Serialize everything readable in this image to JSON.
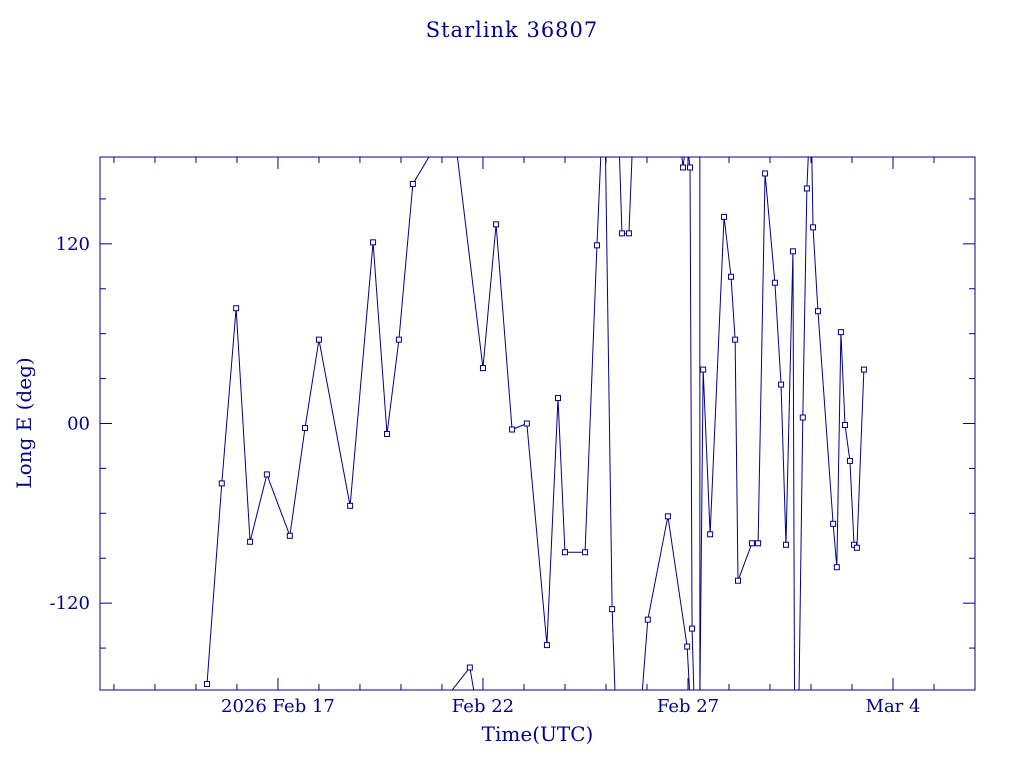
{
  "window": {
    "background": "#ffffff"
  },
  "chart_data": {
    "type": "line",
    "title": "Starlink 36807",
    "xlabel": "Time(UTC)",
    "ylabel": "Long E (deg)",
    "line_color": "#00008B",
    "axis_color": "#00008B",
    "marker": "open-square",
    "grid": false,
    "legend": "none",
    "x_range_days": [
      12.66,
      34.0
    ],
    "y_range_deg": [
      -178,
      178
    ],
    "x_ticks": [
      {
        "day": 17,
        "label": "2026 Feb 17"
      },
      {
        "day": 22,
        "label": "Feb 22"
      },
      {
        "day": 27,
        "label": "Feb 27"
      },
      {
        "day": 32,
        "label": "Mar  4"
      }
    ],
    "y_ticks": [
      {
        "value": 120,
        "label": "120"
      },
      {
        "value": 0,
        "label": "00"
      },
      {
        "value": -120,
        "label": "-120"
      }
    ],
    "x_minor_step_days": 1,
    "y_minor_step_deg": 30,
    "points": [
      [
        15.27,
        -174
      ],
      [
        15.63,
        -40
      ],
      [
        15.98,
        77
      ],
      [
        16.32,
        -79
      ],
      [
        16.73,
        -34
      ],
      [
        17.29,
        -75
      ],
      [
        17.66,
        -3
      ],
      [
        18.0,
        56
      ],
      [
        18.76,
        -55
      ],
      [
        19.32,
        121
      ],
      [
        19.66,
        -7
      ],
      [
        19.95,
        56
      ],
      [
        20.29,
        160
      ],
      [
        21.68,
        -163
      ],
      [
        22.0,
        37
      ],
      [
        22.32,
        133
      ],
      [
        22.71,
        -4
      ],
      [
        23.07,
        0
      ],
      [
        23.56,
        -148
      ],
      [
        23.83,
        17
      ],
      [
        24.0,
        -86
      ],
      [
        24.49,
        -86
      ],
      [
        24.78,
        119
      ],
      [
        25.15,
        -124
      ],
      [
        25.39,
        127
      ],
      [
        25.56,
        127
      ],
      [
        26.02,
        -131
      ],
      [
        26.51,
        -62
      ],
      [
        26.88,
        171
      ],
      [
        26.98,
        -149
      ],
      [
        27.05,
        171
      ],
      [
        27.1,
        -137
      ],
      [
        27.37,
        36
      ],
      [
        27.54,
        -74
      ],
      [
        27.88,
        138
      ],
      [
        28.05,
        98
      ],
      [
        28.15,
        56
      ],
      [
        28.22,
        -105
      ],
      [
        28.56,
        -80
      ],
      [
        28.71,
        -80
      ],
      [
        28.88,
        167
      ],
      [
        29.12,
        94
      ],
      [
        29.27,
        26
      ],
      [
        29.39,
        -81
      ],
      [
        29.56,
        115
      ],
      [
        29.8,
        4
      ],
      [
        29.9,
        157
      ],
      [
        30.05,
        131
      ],
      [
        30.17,
        75
      ],
      [
        30.54,
        -67
      ],
      [
        30.63,
        -96
      ],
      [
        30.73,
        61
      ],
      [
        30.83,
        -1
      ],
      [
        30.95,
        -25
      ],
      [
        31.05,
        -81
      ],
      [
        31.12,
        -83
      ],
      [
        31.29,
        36
      ]
    ],
    "draw_segments": [
      [
        [
          15.27,
          -174
        ],
        [
          15.63,
          -40
        ],
        [
          15.98,
          77
        ],
        [
          16.32,
          -79
        ],
        [
          16.73,
          -34
        ],
        [
          17.29,
          -75
        ],
        [
          17.66,
          -3
        ],
        [
          18.0,
          56
        ],
        [
          18.76,
          -55
        ],
        [
          19.32,
          121
        ],
        [
          19.66,
          -7
        ],
        [
          19.95,
          56
        ],
        [
          20.29,
          160
        ],
        [
          21.05,
          195
        ]
      ],
      [
        [
          21.02,
          -186
        ],
        [
          21.68,
          -163
        ],
        [
          21.85,
          -190
        ]
      ],
      [
        [
          21.28,
          200
        ],
        [
          22.0,
          37
        ],
        [
          22.32,
          133
        ],
        [
          22.71,
          -4
        ],
        [
          23.07,
          0
        ],
        [
          23.56,
          -148
        ],
        [
          23.83,
          17
        ],
        [
          24.0,
          -86
        ],
        [
          24.49,
          -86
        ],
        [
          24.78,
          119
        ],
        [
          24.9,
          195
        ]
      ],
      [
        [
          24.98,
          195
        ],
        [
          25.15,
          -124
        ],
        [
          25.24,
          -195
        ]
      ],
      [
        [
          25.31,
          195
        ],
        [
          25.39,
          127
        ],
        [
          25.56,
          127
        ],
        [
          25.66,
          195
        ]
      ],
      [
        [
          25.84,
          -195
        ],
        [
          26.02,
          -131
        ],
        [
          26.51,
          -62
        ],
        [
          26.98,
          -149
        ],
        [
          27.07,
          -195
        ]
      ],
      [
        [
          26.83,
          183
        ],
        [
          26.88,
          171
        ],
        [
          26.93,
          183
        ]
      ],
      [
        [
          27.0,
          183
        ],
        [
          27.05,
          171
        ],
        [
          27.1,
          -137
        ],
        [
          27.16,
          -195
        ]
      ],
      [
        [
          27.29,
          183
        ],
        [
          27.29,
          -183
        ]
      ],
      [
        [
          27.29,
          -183
        ],
        [
          27.37,
          36
        ],
        [
          27.54,
          -74
        ],
        [
          27.88,
          138
        ],
        [
          28.05,
          98
        ],
        [
          28.15,
          56
        ],
        [
          28.22,
          -105
        ],
        [
          28.56,
          -80
        ],
        [
          28.71,
          -80
        ],
        [
          28.88,
          167
        ],
        [
          29.12,
          94
        ],
        [
          29.27,
          26
        ],
        [
          29.39,
          -81
        ],
        [
          29.56,
          115
        ],
        [
          29.6,
          -195
        ]
      ],
      [
        [
          29.7,
          -195
        ],
        [
          29.8,
          4
        ],
        [
          29.9,
          157
        ],
        [
          29.96,
          195
        ]
      ],
      [
        [
          30.01,
          195
        ],
        [
          30.05,
          131
        ],
        [
          30.17,
          75
        ],
        [
          30.54,
          -67
        ],
        [
          30.63,
          -96
        ],
        [
          30.73,
          61
        ],
        [
          30.83,
          -1
        ],
        [
          30.95,
          -25
        ],
        [
          31.05,
          -81
        ],
        [
          31.12,
          -83
        ],
        [
          31.29,
          36
        ]
      ]
    ]
  }
}
